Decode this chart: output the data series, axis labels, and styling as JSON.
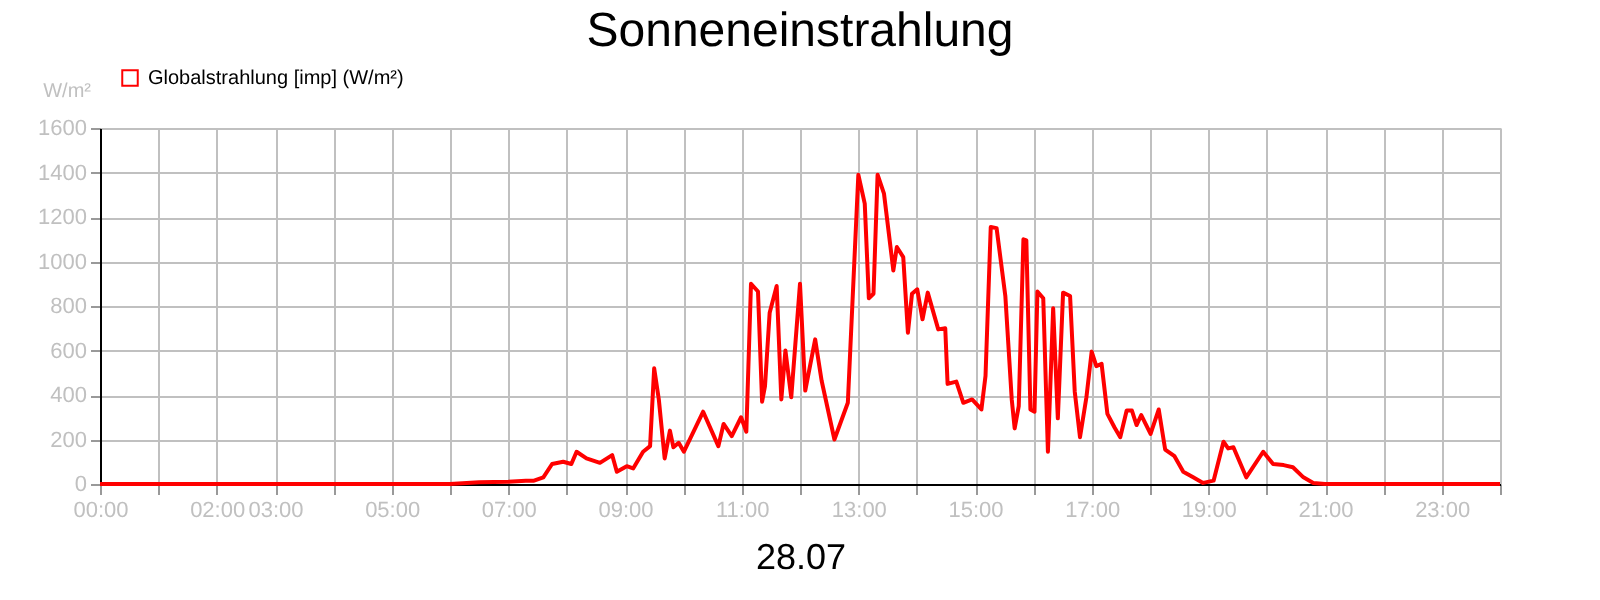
{
  "chart_data": {
    "type": "line",
    "title": "Sonneneinstrahlung",
    "xlabel": "28.07",
    "ylabel": "W/m²",
    "x": [
      0,
      3,
      6,
      6.5,
      7.0,
      7.3,
      7.44,
      7.6,
      7.75,
      7.94,
      8.08,
      8.17,
      8.34,
      8.57,
      8.78,
      8.86,
      9.03,
      9.14,
      9.31,
      9.43,
      9.5,
      9.58,
      9.68,
      9.77,
      9.83,
      9.92,
      10.01,
      10.34,
      10.6,
      10.69,
      10.83,
      10.99,
      11.08,
      11.16,
      11.28,
      11.35,
      11.4,
      11.48,
      11.6,
      11.68,
      11.75,
      11.85,
      12.0,
      12.09,
      12.26,
      12.37,
      12.59,
      12.82,
      13.0,
      13.11,
      13.18,
      13.26,
      13.33,
      13.44,
      13.6,
      13.66,
      13.77,
      13.85,
      13.92,
      14.01,
      14.1,
      14.19,
      14.37,
      14.49,
      14.53,
      14.68,
      14.8,
      14.95,
      15.11,
      15.18,
      15.27,
      15.37,
      15.52,
      15.63,
      15.68,
      15.75,
      15.83,
      15.88,
      15.95,
      16.02,
      16.07,
      16.17,
      16.25,
      16.34,
      16.42,
      16.51,
      16.63,
      16.71,
      16.8,
      16.91,
      17.0,
      17.08,
      17.17,
      17.27,
      17.39,
      17.49,
      17.6,
      17.69,
      17.77,
      17.85,
      18.01,
      18.15,
      18.26,
      18.42,
      18.57,
      18.74,
      18.91,
      19.09,
      19.26,
      19.34,
      19.43,
      19.65,
      19.94,
      20.11,
      20.29,
      20.45,
      20.63,
      20.8,
      21.0,
      24
    ],
    "series": [
      {
        "name": "Globalstrahlung [imp] (W/m²)",
        "color": "#ff0000",
        "values": [
          0,
          0,
          0,
          8,
          10,
          15,
          15,
          30,
          90,
          100,
          90,
          145,
          115,
          95,
          130,
          55,
          80,
          70,
          145,
          170,
          520,
          380,
          115,
          240,
          165,
          185,
          145,
          325,
          170,
          270,
          215,
          300,
          235,
          900,
          865,
          370,
          440,
          770,
          890,
          380,
          600,
          390,
          900,
          420,
          650,
          465,
          200,
          365,
          1390,
          1260,
          835,
          855,
          1390,
          1305,
          960,
          1065,
          1020,
          680,
          855,
          875,
          740,
          860,
          695,
          700,
          450,
          460,
          365,
          380,
          335,
          485,
          1155,
          1150,
          845,
          380,
          250,
          350,
          1100,
          1095,
          335,
          325,
          865,
          835,
          145,
          790,
          295,
          860,
          845,
          415,
          210,
          390,
          595,
          530,
          540,
          315,
          255,
          210,
          330,
          330,
          265,
          310,
          225,
          335,
          155,
          125,
          55,
          30,
          5,
          15,
          190,
          160,
          165,
          30,
          145,
          90,
          85,
          75,
          30,
          5,
          0,
          0
        ]
      }
    ],
    "xlim": [
      0,
      24
    ],
    "ylim": [
      0,
      1600
    ],
    "xticks": [
      {
        "value": 0,
        "label": "00:00"
      },
      {
        "value": 1,
        "label": null
      },
      {
        "value": 2,
        "label": "02:00"
      },
      {
        "value": 3,
        "label": "03:00"
      },
      {
        "value": 4,
        "label": null
      },
      {
        "value": 5,
        "label": "05:00"
      },
      {
        "value": 6,
        "label": null
      },
      {
        "value": 7,
        "label": "07:00"
      },
      {
        "value": 8,
        "label": null
      },
      {
        "value": 9,
        "label": "09:00"
      },
      {
        "value": 10,
        "label": null
      },
      {
        "value": 11,
        "label": "11:00"
      },
      {
        "value": 12,
        "label": null
      },
      {
        "value": 13,
        "label": "13:00"
      },
      {
        "value": 14,
        "label": null
      },
      {
        "value": 15,
        "label": "15:00"
      },
      {
        "value": 16,
        "label": null
      },
      {
        "value": 17,
        "label": "17:00"
      },
      {
        "value": 18,
        "label": null
      },
      {
        "value": 19,
        "label": "19:00"
      },
      {
        "value": 20,
        "label": null
      },
      {
        "value": 21,
        "label": "21:00"
      },
      {
        "value": 22,
        "label": null
      },
      {
        "value": 23,
        "label": "23:00"
      },
      {
        "value": 24,
        "label": null
      }
    ],
    "yticks": [
      0,
      200,
      400,
      600,
      800,
      1000,
      1200,
      1400,
      1600
    ],
    "grid": true,
    "legend": "top left",
    "marker": "none",
    "line_style": "solid"
  }
}
